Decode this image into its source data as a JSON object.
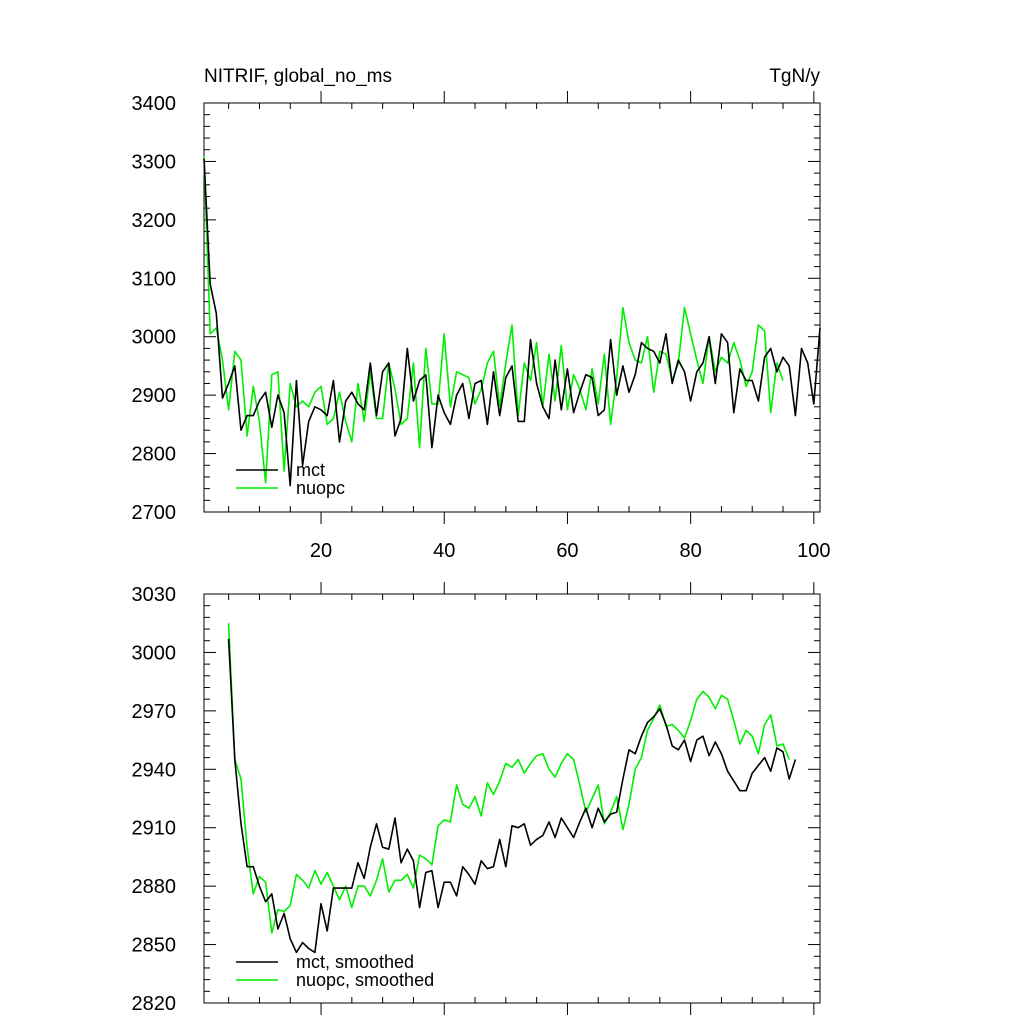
{
  "chart_data": [
    {
      "type": "line",
      "title": "NITRIF, global_no_ms",
      "units": "TgN/y",
      "xlim": [
        1,
        101
      ],
      "ylim": [
        2700,
        3400
      ],
      "xticks": [
        20,
        40,
        60,
        80,
        100
      ],
      "yticks": [
        2700,
        2800,
        2900,
        3000,
        3100,
        3200,
        3300,
        3400
      ],
      "show_x_labels": true,
      "legend_position": "bottom-left",
      "series": [
        {
          "name": "mct",
          "color": "#000000",
          "x_start": 1,
          "values": [
            3305,
            3090,
            3040,
            2895,
            2920,
            2950,
            2840,
            2865,
            2865,
            2890,
            2905,
            2845,
            2900,
            2870,
            2745,
            2925,
            2780,
            2855,
            2880,
            2875,
            2865,
            2925,
            2820,
            2890,
            2905,
            2885,
            2875,
            2955,
            2865,
            2940,
            2955,
            2830,
            2860,
            2980,
            2890,
            2925,
            2935,
            2810,
            2900,
            2870,
            2850,
            2900,
            2920,
            2860,
            2920,
            2925,
            2850,
            2940,
            2865,
            2930,
            2950,
            2855,
            2855,
            2995,
            2920,
            2880,
            2860,
            2960,
            2875,
            2945,
            2870,
            2905,
            2935,
            2930,
            2865,
            2875,
            2995,
            2900,
            2950,
            2905,
            2935,
            2990,
            2980,
            2975,
            2955,
            3005,
            2920,
            2960,
            2940,
            2890,
            2940,
            2955,
            3000,
            2920,
            3005,
            2990,
            2870,
            2945,
            2925,
            2925,
            2890,
            2965,
            2980,
            2940,
            2965,
            2950,
            2865,
            2980,
            2955,
            2885,
            3015
          ]
        },
        {
          "name": "nuopc",
          "color": "#00ee00",
          "x_start": 1,
          "values": [
            3310,
            3005,
            3015,
            2960,
            2875,
            2975,
            2960,
            2830,
            2915,
            2855,
            2750,
            2935,
            2940,
            2770,
            2920,
            2880,
            2890,
            2880,
            2905,
            2915,
            2850,
            2860,
            2905,
            2855,
            2820,
            2920,
            2855,
            2940,
            2860,
            2860,
            2955,
            2910,
            2850,
            2860,
            2955,
            2810,
            2980,
            2885,
            2885,
            3005,
            2880,
            2940,
            2935,
            2930,
            2885,
            2910,
            2955,
            2975,
            2880,
            2955,
            3020,
            2865,
            2955,
            2925,
            2990,
            2880,
            2970,
            2890,
            2985,
            2875,
            2935,
            2910,
            2875,
            2945,
            2885,
            2970,
            2850,
            2930,
            3050,
            2990,
            2960,
            2955,
            3000,
            2905,
            2975,
            2970,
            2925,
            2955,
            3050,
            3005,
            2960,
            2920,
            3000,
            2940,
            2965,
            2955,
            2990,
            2960,
            2915,
            2940,
            3020,
            3010,
            2870,
            2955,
            2925
          ]
        }
      ]
    },
    {
      "type": "line",
      "title": "",
      "units": "",
      "xlim": [
        1,
        101
      ],
      "ylim": [
        2820,
        3030
      ],
      "xticks": [
        20,
        40,
        60,
        80,
        100
      ],
      "yticks": [
        2820,
        2850,
        2880,
        2910,
        2940,
        2970,
        3000,
        3030
      ],
      "show_x_labels": false,
      "legend_position": "bottom-left",
      "series": [
        {
          "name": "mct, smoothed",
          "color": "#000000",
          "x_start": 5,
          "values": [
            3007,
            2945,
            2912,
            2890,
            2890,
            2880,
            2872,
            2876,
            2858,
            2866,
            2853,
            2846,
            2851,
            2848,
            2846,
            2871,
            2857,
            2879,
            2879,
            2879,
            2879,
            2892,
            2884,
            2900,
            2912,
            2900,
            2899,
            2915,
            2892,
            2899,
            2893,
            2869,
            2887,
            2888,
            2869,
            2882,
            2882,
            2875,
            2890,
            2886,
            2881,
            2893,
            2889,
            2890,
            2904,
            2890,
            2911,
            2910,
            2912,
            2901,
            2904,
            2906,
            2913,
            2905,
            2915,
            2910,
            2905,
            2913,
            2920,
            2910,
            2920,
            2913,
            2917,
            2918,
            2935,
            2950,
            2948,
            2957,
            2964,
            2967,
            2971,
            2963,
            2952,
            2950,
            2955,
            2944,
            2955,
            2957,
            2947,
            2954,
            2948,
            2939,
            2934,
            2929,
            2929,
            2938,
            2942,
            2946,
            2939,
            2951,
            2949,
            2935,
            2945
          ]
        },
        {
          "name": "nuopc, smoothed",
          "color": "#00ee00",
          "x_start": 5,
          "values": [
            3015,
            2945,
            2935,
            2900,
            2876,
            2885,
            2882,
            2856,
            2868,
            2867,
            2870,
            2886,
            2883,
            2879,
            2888,
            2881,
            2887,
            2880,
            2873,
            2880,
            2869,
            2880,
            2880,
            2875,
            2883,
            2894,
            2877,
            2883,
            2883,
            2886,
            2879,
            2896,
            2894,
            2891,
            2911,
            2914,
            2913,
            2932,
            2922,
            2920,
            2926,
            2916,
            2933,
            2927,
            2934,
            2943,
            2941,
            2945,
            2938,
            2943,
            2947,
            2948,
            2940,
            2936,
            2943,
            2948,
            2945,
            2932,
            2918,
            2925,
            2932,
            2912,
            2918,
            2926,
            2909,
            2922,
            2940,
            2946,
            2960,
            2966,
            2973,
            2962,
            2963,
            2960,
            2956,
            2965,
            2976,
            2980,
            2977,
            2971,
            2978,
            2976,
            2965,
            2953,
            2960,
            2957,
            2948,
            2963,
            2968,
            2952,
            2953,
            2945
          ]
        }
      ]
    }
  ]
}
